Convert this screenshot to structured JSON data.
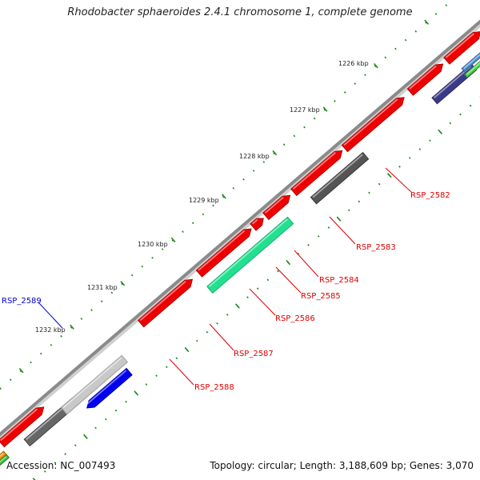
{
  "title": "Rhodobacter sphaeroides 2.4.1 chromosome 1, complete genome",
  "footer": {
    "accession": "Accession: NC_007493",
    "summary": "Topology: circular; Length: 3,188,609 bp; Genes: 3,070"
  },
  "scale_labels": [
    "1226 kbp",
    "1227 kbp",
    "1228 kbp",
    "1229 kbp",
    "1230 kbp",
    "1231 kbp",
    "1232 kbp"
  ],
  "gene_labels": [
    {
      "text": "RSP_2582",
      "color": "#dd0000"
    },
    {
      "text": "RSP_2583",
      "color": "#dd0000"
    },
    {
      "text": "RSP_2584",
      "color": "#dd0000"
    },
    {
      "text": "RSP_2585",
      "color": "#dd0000"
    },
    {
      "text": "RSP_2586",
      "color": "#dd0000"
    },
    {
      "text": "RSP_2587",
      "color": "#dd0000"
    },
    {
      "text": "RSP_2588",
      "color": "#dd0000"
    },
    {
      "text": "RSP_2589",
      "color": "#0000cc"
    }
  ],
  "colors": {
    "backbone": "#8a8a8a",
    "gene_forward": "#ee0000",
    "ticks": "#1e8a1e",
    "label_red": "#dd0000",
    "label_blue": "#0000cc"
  }
}
